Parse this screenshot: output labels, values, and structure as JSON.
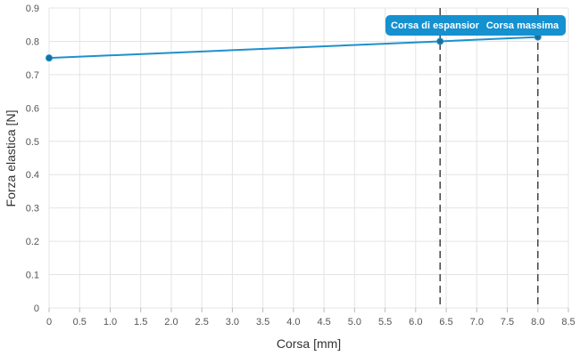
{
  "chart_data": {
    "type": "line",
    "xlabel": "Corsa [mm]",
    "ylabel": "Forza elastica [N]",
    "xlim": [
      0,
      8.5
    ],
    "ylim": [
      0,
      0.9
    ],
    "x_ticks": [
      "0",
      "0.5",
      "1.0",
      "1.5",
      "2.0",
      "2.5",
      "3.0",
      "3.5",
      "4.0",
      "4.5",
      "5.0",
      "5.5",
      "6.0",
      "6.5",
      "7.0",
      "7.5",
      "8.0",
      "8.5"
    ],
    "y_ticks": [
      "0",
      "0.1",
      "0.2",
      "0.3",
      "0.4",
      "0.5",
      "0.6",
      "0.7",
      "0.8",
      "0.9"
    ],
    "grid": true,
    "legend": "none",
    "series": [
      {
        "color": "#1e90cc",
        "points": [
          {
            "x": 0,
            "y": 0.75
          },
          {
            "x": 6.4,
            "y": 0.8
          },
          {
            "x": 8.0,
            "y": 0.813
          }
        ]
      }
    ],
    "markers": [
      {
        "x": 6.4,
        "label": "Corsa di espansione"
      },
      {
        "x": 8.0,
        "label": "Corsa massima"
      }
    ],
    "callout_color": "#1591d0"
  }
}
